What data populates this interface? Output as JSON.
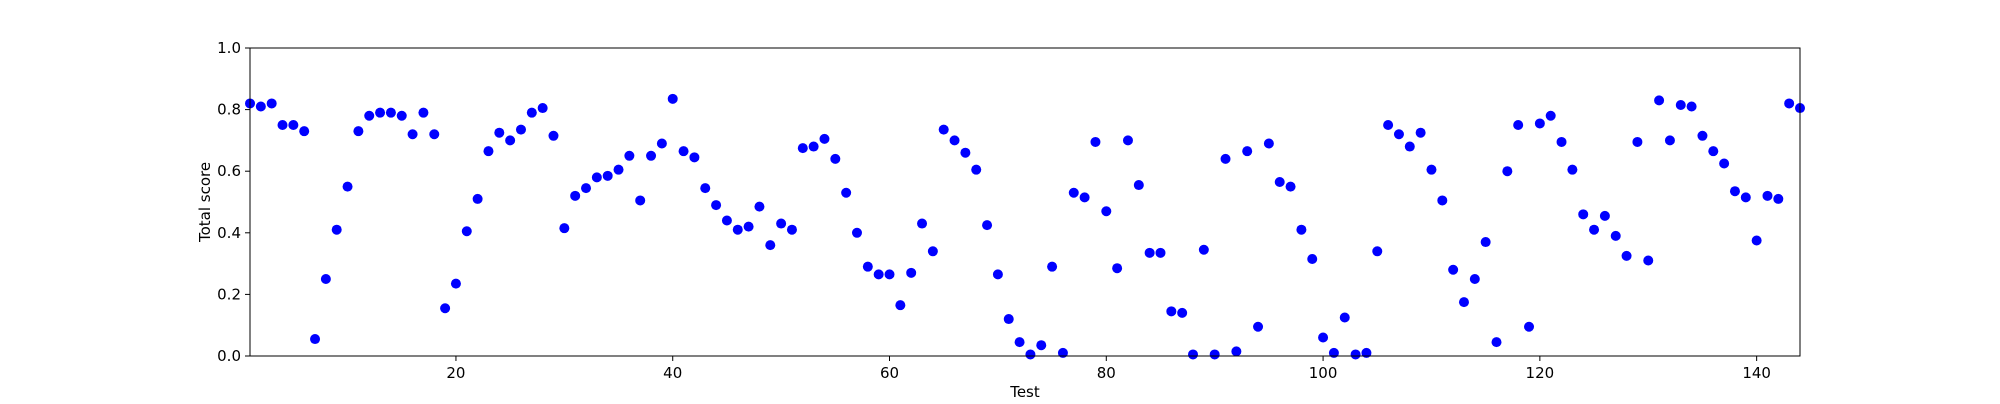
{
  "chart_data": {
    "type": "scatter",
    "title": "",
    "xlabel": "Test",
    "ylabel": "Total score",
    "xlim": [
      1,
      144
    ],
    "ylim": [
      0.0,
      1.0
    ],
    "xticks": [
      20,
      40,
      60,
      80,
      100,
      120,
      140
    ],
    "xtick_labels": [
      "20",
      "40",
      "60",
      "80",
      "100",
      "120",
      "140"
    ],
    "yticks": [
      0.0,
      0.2,
      0.4,
      0.6,
      0.8,
      1.0
    ],
    "ytick_labels": [
      "0.0",
      "0.2",
      "0.4",
      "0.6",
      "0.8",
      "1.0"
    ],
    "grid": false,
    "marker_color": "#0000ff",
    "series": [
      {
        "x": [
          1,
          2,
          3,
          4,
          5,
          6,
          7,
          8,
          9,
          10,
          11,
          12,
          13,
          14,
          15,
          16,
          17,
          18,
          19,
          20,
          21,
          22,
          23,
          24,
          25,
          26,
          27,
          28,
          29,
          30,
          31,
          32,
          33,
          34,
          35,
          36,
          37,
          38,
          39,
          40,
          41,
          42,
          43,
          44,
          45,
          46,
          47,
          48,
          49,
          50,
          51,
          52,
          53,
          54,
          55,
          56,
          57,
          58,
          59,
          60,
          61,
          62,
          63,
          64,
          65,
          66,
          67,
          68,
          69,
          70,
          71,
          72,
          73,
          74,
          75,
          76,
          77,
          78,
          79,
          80,
          81,
          82,
          83,
          84,
          85,
          86,
          87,
          88,
          89,
          90,
          91,
          92,
          93,
          94,
          95,
          96,
          97,
          98,
          99,
          100,
          101,
          102,
          103,
          104,
          105,
          106,
          107,
          108,
          109,
          110,
          111,
          112,
          113,
          114,
          115,
          116,
          117,
          118,
          119,
          120,
          121,
          122,
          123,
          124,
          125,
          126,
          127,
          128,
          129,
          130,
          131,
          132,
          133,
          134,
          135,
          136,
          137,
          138,
          139,
          140,
          141,
          142,
          143,
          144
        ],
        "y": [
          0.82,
          0.81,
          0.82,
          0.75,
          0.75,
          0.73,
          0.055,
          0.25,
          0.41,
          0.55,
          0.73,
          0.78,
          0.79,
          0.79,
          0.78,
          0.72,
          0.79,
          0.72,
          0.155,
          0.235,
          0.405,
          0.51,
          0.665,
          0.725,
          0.7,
          0.735,
          0.79,
          0.805,
          0.715,
          0.415,
          0.52,
          0.545,
          0.58,
          0.585,
          0.605,
          0.65,
          0.505,
          0.65,
          0.69,
          0.835,
          0.665,
          0.645,
          0.545,
          0.49,
          0.44,
          0.41,
          0.42,
          0.485,
          0.36,
          0.43,
          0.41,
          0.675,
          0.68,
          0.705,
          0.64,
          0.53,
          0.4,
          0.29,
          0.265,
          0.265,
          0.165,
          0.27,
          0.43,
          0.34,
          0.735,
          0.7,
          0.66,
          0.605,
          0.425,
          0.265,
          0.12,
          0.045,
          0.005,
          0.035,
          0.29,
          0.01,
          0.53,
          0.515,
          0.695,
          0.47,
          0.285,
          0.7,
          0.555,
          0.335,
          0.335,
          0.145,
          0.14,
          0.005,
          0.345,
          0.005,
          0.64,
          0.015,
          0.665,
          0.095,
          0.69,
          0.565,
          0.55,
          0.41,
          0.315,
          0.06,
          0.01,
          0.125,
          0.005,
          0.01,
          0.34,
          0.75,
          0.72,
          0.68,
          0.725,
          0.605,
          0.505,
          0.28,
          0.175,
          0.25,
          0.37,
          0.045,
          0.6,
          0.75,
          0.095,
          0.755,
          0.78,
          0.695,
          0.605,
          0.46,
          0.41,
          0.455,
          0.39,
          0.325,
          0.695,
          0.31,
          0.83,
          0.7,
          0.815,
          0.81,
          0.715,
          0.665,
          0.625,
          0.535,
          0.515,
          0.375,
          0.52,
          0.51,
          0.82,
          0.805
        ]
      }
    ]
  }
}
